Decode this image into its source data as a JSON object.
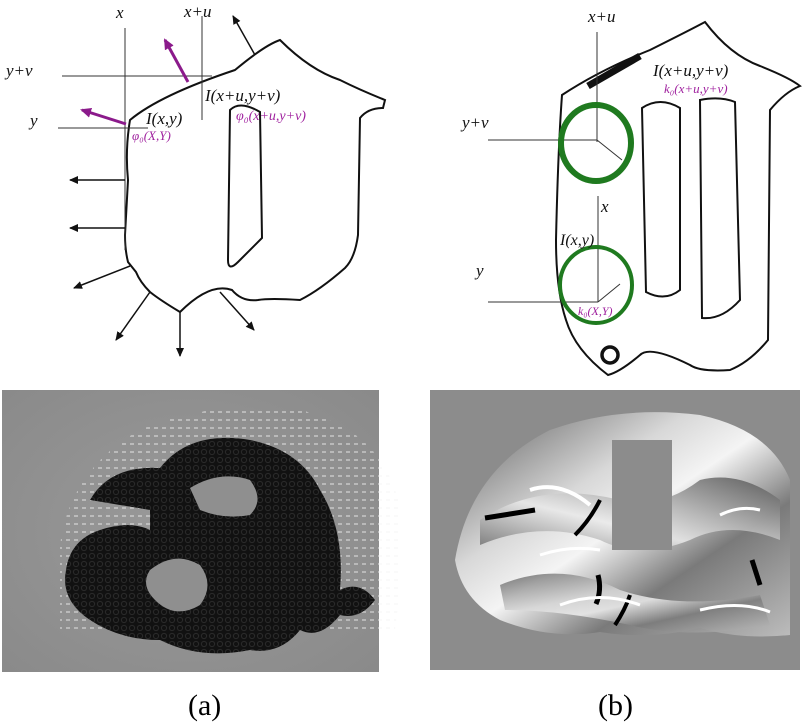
{
  "panel_a": {
    "axis_x": "x",
    "axis_xu": "x+u",
    "axis_yv": "y+v",
    "axis_y": "y",
    "label_I_xu_yv": "I(x+u,y+v)",
    "label_phi_xu_yv": "φ₀(x+u,y+v)",
    "label_I_xy": "I(x,y)",
    "label_phi_xy": "φ₀(X,Y)",
    "caption": "(a)"
  },
  "panel_b": {
    "axis_xu": "x+u",
    "axis_yv": "y+v",
    "axis_x": "x",
    "axis_y": "y",
    "label_I_xu_yv": "I(x+u,y+v)",
    "label_k_xu_yv": "k₀(x+u,y+v)",
    "label_I_xy": "I(x,y)",
    "label_k_xy": "k₀(X,Y)",
    "caption": "(b)"
  },
  "colors": {
    "vector_purple": "#8b1a8b",
    "label_purple": "#a0229f",
    "circle_green": "#1f7a1f",
    "outline": "#111111",
    "field_gray": "#8c8c8c"
  }
}
